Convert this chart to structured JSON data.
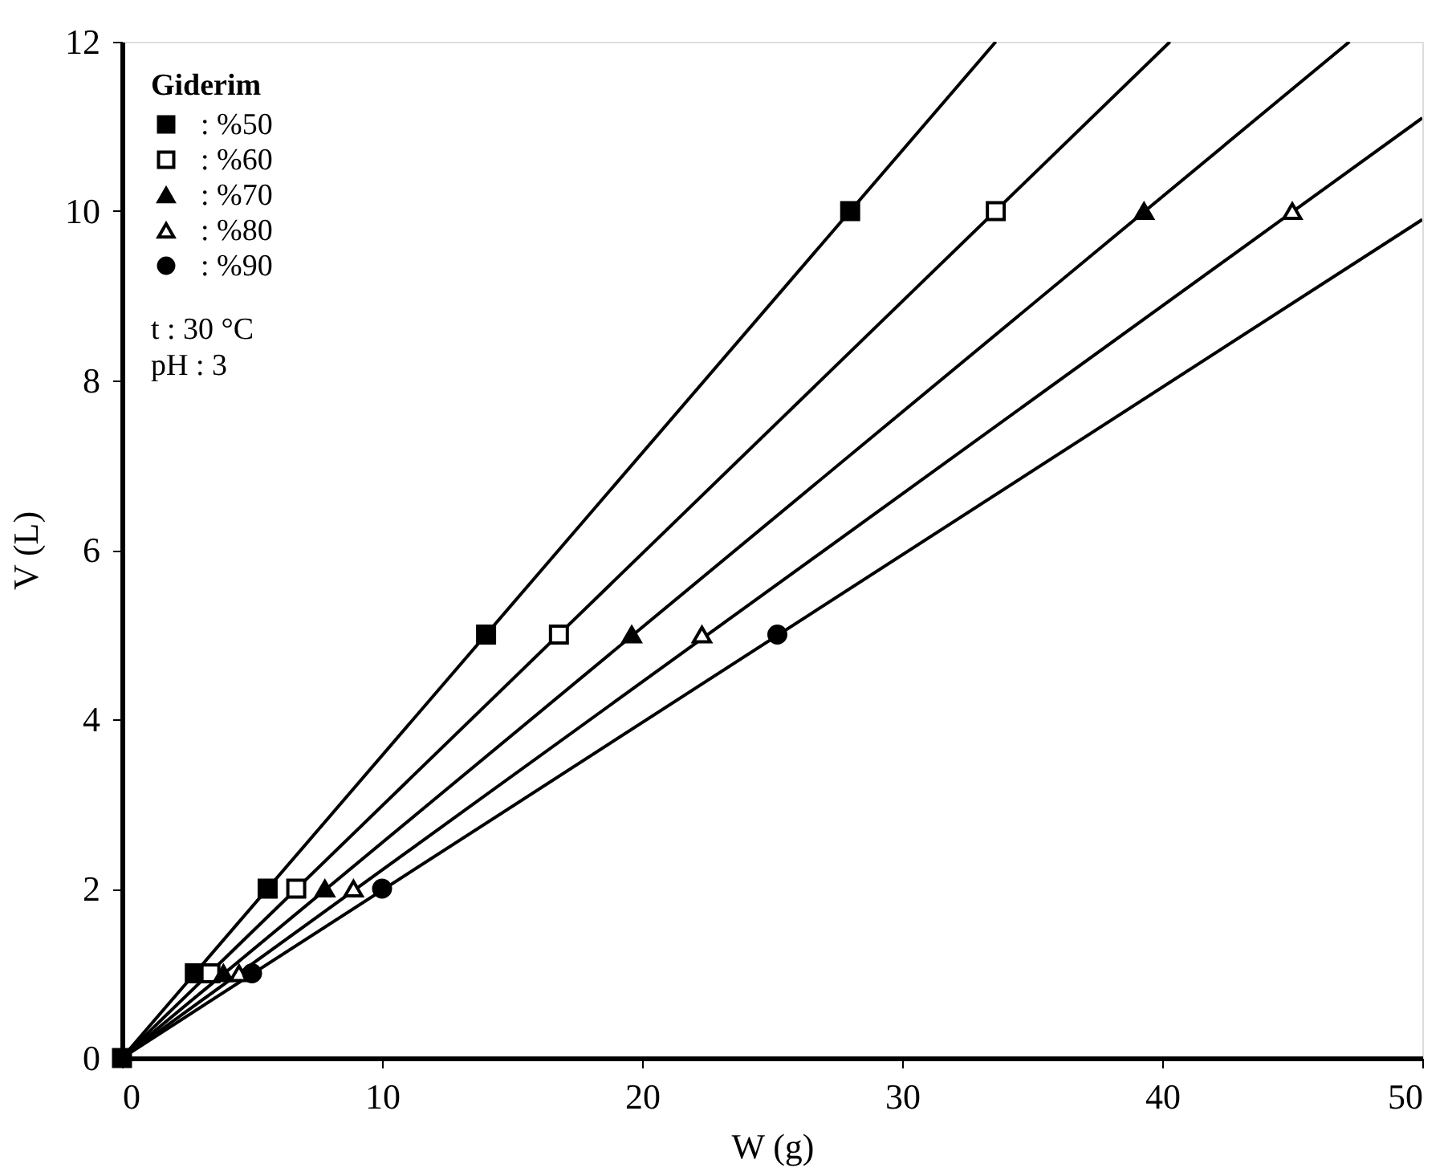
{
  "chart_data": {
    "type": "scatter",
    "xlabel": "W (g)",
    "ylabel": "V (L)",
    "legend_title": "Giderim",
    "xlim": [
      0,
      50
    ],
    "xticks": [
      0,
      10,
      20,
      30,
      40,
      50
    ],
    "ylim": [
      0,
      12
    ],
    "yticks": [
      0,
      2,
      4,
      6,
      8,
      10,
      12
    ],
    "grid": false,
    "legend": "top left",
    "annotations": [
      "t : 30 °C",
      "pH : 3"
    ],
    "series": [
      {
        "name": ": %50",
        "color": "#000000",
        "marker": "square",
        "x": [
          0,
          2.8,
          5.6,
          14,
          28
        ],
        "values": [
          0,
          1,
          2,
          5,
          10
        ]
      },
      {
        "name": ": %60",
        "color": "#ffffff",
        "marker": "square",
        "x": [
          3.4,
          6.7,
          16.8,
          33.6
        ],
        "values": [
          1,
          2,
          5,
          10
        ]
      },
      {
        "name": ": %70",
        "color": "#000000",
        "marker": "triangle",
        "x": [
          3.9,
          7.8,
          19.6,
          39.3
        ],
        "values": [
          1,
          2,
          5,
          10
        ]
      },
      {
        "name": ": %80",
        "color": "#ffffff",
        "marker": "triangle",
        "x": [
          4.5,
          8.9,
          22.3,
          45
        ],
        "values": [
          1,
          2,
          5,
          10
        ]
      },
      {
        "name": ": %90",
        "color": "#000000",
        "marker": "circle",
        "x": [
          5,
          10,
          25.2
        ],
        "values": [
          1,
          2,
          5
        ]
      },
      {
        "type": "line",
        "color": "#000000",
        "x": [
          0,
          33.6
        ],
        "values": [
          0,
          12
        ]
      },
      {
        "type": "line",
        "color": "#000000",
        "x": [
          0,
          40.3
        ],
        "values": [
          0,
          12
        ]
      },
      {
        "type": "line",
        "color": "#000000",
        "x": [
          0,
          47.2
        ],
        "values": [
          0,
          12
        ]
      },
      {
        "type": "line",
        "color": "#000000",
        "x": [
          0,
          50
        ],
        "values": [
          0,
          11.1
        ]
      },
      {
        "type": "line",
        "color": "#000000",
        "x": [
          0,
          50
        ],
        "values": [
          0,
          9.9
        ]
      }
    ]
  }
}
